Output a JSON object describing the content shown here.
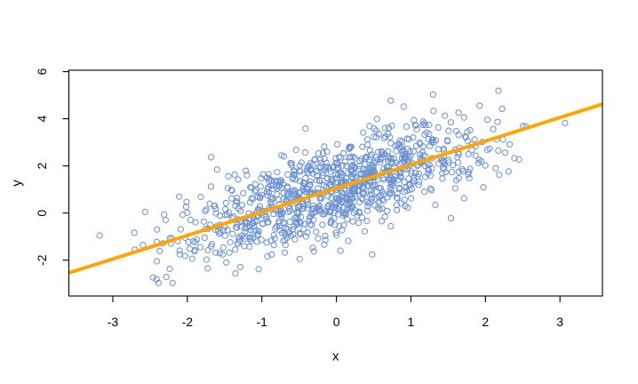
{
  "figure": {
    "background": "#ffffff",
    "frame_color": "#000000"
  },
  "chart_data": {
    "type": "scatter",
    "title": "",
    "xlabel": "x",
    "ylabel": "y",
    "xlim": [
      -3.59,
      3.57
    ],
    "ylim": [
      -3.52,
      6.06
    ],
    "x_ticks": [
      -3,
      -2,
      -1,
      0,
      1,
      2,
      3
    ],
    "y_ticks": [
      -2,
      0,
      2,
      4,
      6
    ],
    "grid": false,
    "legend": false,
    "points": {
      "n": 1000,
      "marker": "open-circle",
      "color": "#6990D3",
      "radius": 3.1,
      "stroke_width": 1,
      "generator": {
        "seed": 20,
        "x_mean": 0,
        "x_sd": 1,
        "slope": 1.0,
        "intercept": 1.0,
        "noise_sd": 0.95,
        "x_range": [
          -3.32,
          3.31
        ],
        "y_range": [
          -3.12,
          5.75
        ]
      }
    },
    "fit_line": {
      "intercept": 1.05,
      "slope": 1.0,
      "color": "#FFA500",
      "width": 4
    }
  }
}
